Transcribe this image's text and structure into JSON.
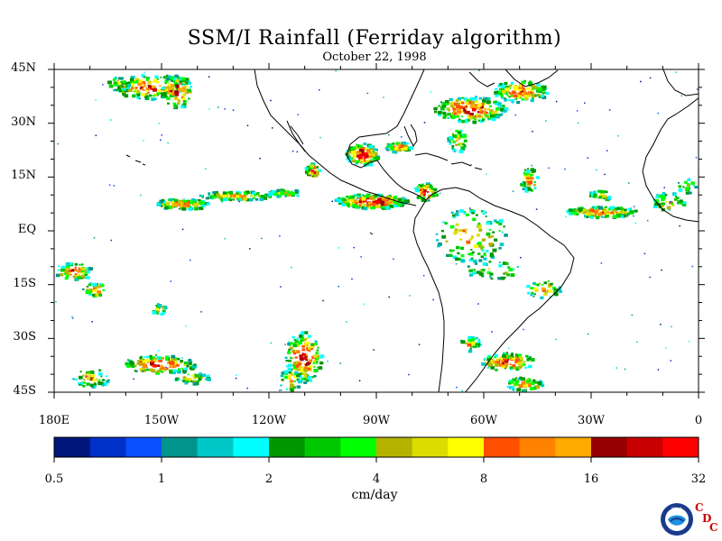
{
  "map": {
    "title": "SSM/I Rainfall (Ferriday algorithm)",
    "date": "October 22, 1998",
    "lat_labels": [
      "45N",
      "30N",
      "15N",
      "EQ",
      "15S",
      "30S",
      "45S"
    ],
    "lon_labels": [
      "180E",
      "150W",
      "120W",
      "90W",
      "60W",
      "30W",
      "0"
    ],
    "region": {
      "lon_range": [
        -180,
        0
      ],
      "lat_range": [
        -45,
        45
      ]
    }
  },
  "colorbar": {
    "colors": [
      "#00167a",
      "#0030c8",
      "#0a50ff",
      "#00948c",
      "#00c8c8",
      "#00ffff",
      "#009600",
      "#00c800",
      "#00ff00",
      "#b4b400",
      "#dcdc00",
      "#ffff00",
      "#ff5000",
      "#ff8200",
      "#ffaa00",
      "#960000",
      "#c80000",
      "#ff0000"
    ],
    "labels": [
      "0.5",
      "1",
      "2",
      "4",
      "8",
      "16",
      "32"
    ],
    "units": "cm/day"
  },
  "logos": {
    "noaa": "NOAA",
    "cdc": [
      "C",
      "D",
      "C"
    ]
  }
}
